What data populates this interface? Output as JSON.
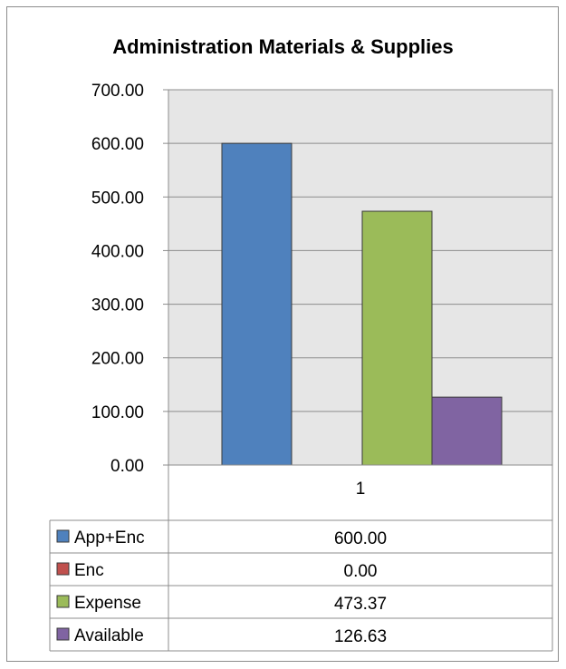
{
  "chart_data": {
    "type": "bar",
    "title": "Administration Materials & Supplies",
    "categories": [
      "1"
    ],
    "ylim": [
      0,
      700
    ],
    "yticks": [
      "0.00",
      "100.00",
      "200.00",
      "300.00",
      "400.00",
      "500.00",
      "600.00",
      "700.00"
    ],
    "grid": true,
    "legend": "data-table-left",
    "series": [
      {
        "name": "App+Enc",
        "values": [
          600.0
        ],
        "label": "600.00",
        "color": "#4f81bd"
      },
      {
        "name": "Enc",
        "values": [
          0.0
        ],
        "label": "0.00",
        "color": "#c0504d"
      },
      {
        "name": "Expense",
        "values": [
          473.37
        ],
        "label": "473.37",
        "color": "#9bbb59"
      },
      {
        "name": "Available",
        "values": [
          126.63
        ],
        "label": "126.63",
        "color": "#8064a2"
      }
    ]
  }
}
